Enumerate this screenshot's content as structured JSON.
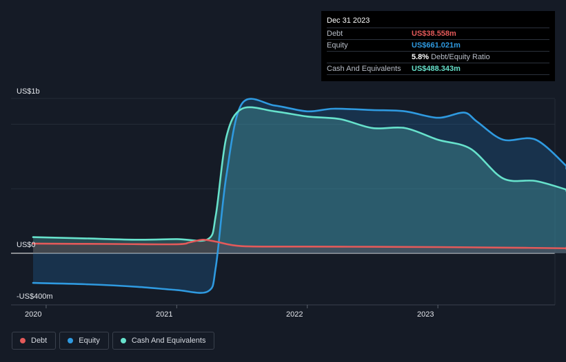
{
  "tooltip": {
    "date": "Dec 31 2023",
    "rows": [
      {
        "label": "Debt",
        "value": "US$38.558m",
        "color": "#e45a5a"
      },
      {
        "label": "Equity",
        "value": "US$661.021m",
        "color": "#2f9ae0"
      },
      {
        "label": "",
        "value": "5.8%",
        "sub": "Debt/Equity Ratio",
        "color": "#ffffff"
      },
      {
        "label": "Cash And Equivalents",
        "value": "US$488.343m",
        "color": "#67e2cc"
      }
    ]
  },
  "legend": [
    {
      "label": "Debt",
      "color": "#e45a5a"
    },
    {
      "label": "Equity",
      "color": "#2f9ae0"
    },
    {
      "label": "Cash And Equivalents",
      "color": "#67e2cc"
    }
  ],
  "chart_data": {
    "type": "area",
    "y_tick_labels": [
      "US$1b",
      "US$0",
      "-US$400m"
    ],
    "x_tick_labels": [
      "2020",
      "2021",
      "2022",
      "2023"
    ],
    "ylim": [
      -400,
      1200
    ],
    "xlim": [
      2019.9,
      2024.0
    ],
    "grid": true,
    "legend_position": "bottom-left",
    "series": [
      {
        "name": "Debt",
        "color": "#e45a5a",
        "x": [
          2019.9,
          2020.5,
          2021.0,
          2021.1,
          2021.2,
          2021.3,
          2021.5,
          2022.0,
          2022.5,
          2023.0,
          2023.5,
          2024.0
        ],
        "y": [
          75,
          72,
          70,
          85,
          105,
          90,
          55,
          52,
          50,
          48,
          44,
          38.558
        ]
      },
      {
        "name": "Equity",
        "color": "#2f9ae0",
        "x": [
          2019.9,
          2020.3,
          2020.7,
          2021.0,
          2021.24,
          2021.3,
          2021.38,
          2021.5,
          2021.75,
          2022.0,
          2022.2,
          2022.5,
          2022.75,
          2023.0,
          2023.2,
          2023.3,
          2023.5,
          2023.75,
          2024.0
        ],
        "y": [
          -230,
          -240,
          -260,
          -285,
          -295,
          -100,
          600,
          1160,
          1145,
          1100,
          1120,
          1110,
          1100,
          1050,
          1090,
          1020,
          880,
          880,
          661.021
        ]
      },
      {
        "name": "Cash And Equivalents",
        "color": "#67e2cc",
        "x": [
          2019.9,
          2020.3,
          2020.7,
          2021.0,
          2021.24,
          2021.3,
          2021.38,
          2021.5,
          2021.75,
          2022.0,
          2022.25,
          2022.5,
          2022.75,
          2023.0,
          2023.25,
          2023.5,
          2023.75,
          2024.0
        ],
        "y": [
          125,
          115,
          105,
          110,
          110,
          300,
          900,
          1120,
          1100,
          1060,
          1040,
          970,
          970,
          880,
          810,
          580,
          560,
          488.343
        ]
      }
    ]
  }
}
